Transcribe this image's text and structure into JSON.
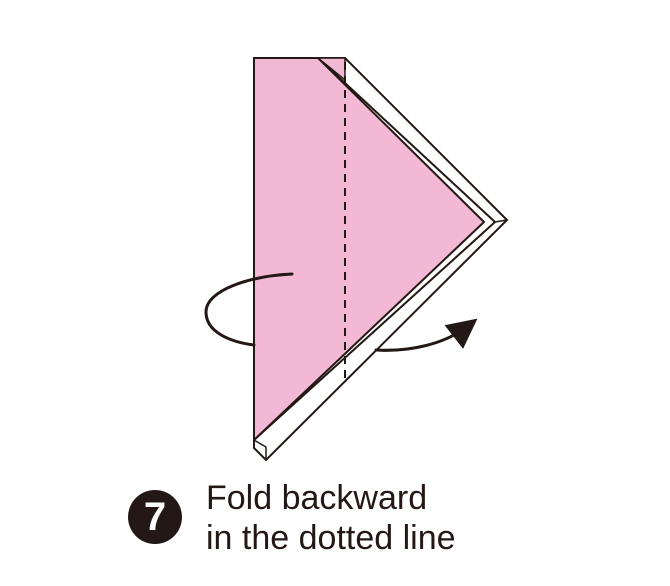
{
  "step": {
    "number": "7",
    "instruction_line1": "Fold backward",
    "instruction_line2": "in the dotted line"
  },
  "colors": {
    "paper_front": "#f3b9d4",
    "paper_back": "#ffffff",
    "outline": "#231815",
    "badge": "#231815"
  },
  "icons": {
    "fold_arrow": "curved-arrow-backward-fold",
    "fold_line": "dashed-valley-line"
  }
}
